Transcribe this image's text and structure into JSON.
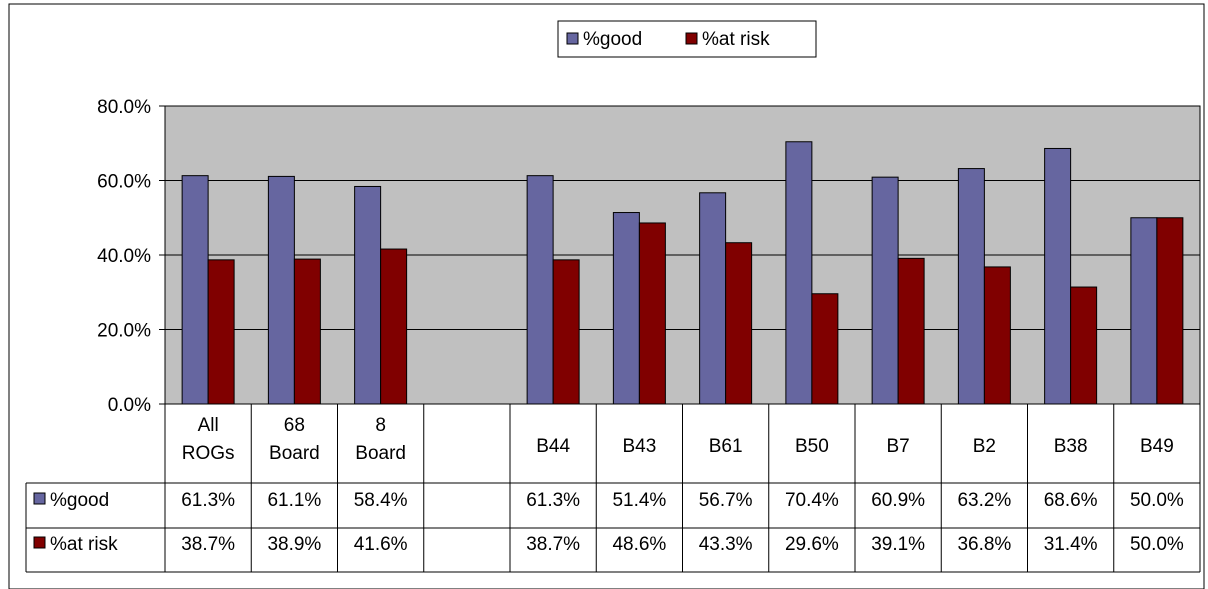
{
  "chart_data": {
    "type": "bar",
    "title": "",
    "xlabel": "",
    "ylabel": "",
    "ylim": [
      0,
      80
    ],
    "yticks": [
      "0.0%",
      "20.0%",
      "40.0%",
      "60.0%",
      "80.0%"
    ],
    "grid": true,
    "legend": "top-center",
    "categories": [
      [
        "All",
        "ROGs"
      ],
      [
        "68",
        "Board"
      ],
      [
        "8",
        "Board"
      ],
      [
        ""
      ],
      [
        "B44"
      ],
      [
        "B43"
      ],
      [
        "B61"
      ],
      [
        "B50"
      ],
      [
        "B7"
      ],
      [
        "B2"
      ],
      [
        "B38"
      ],
      [
        "B49"
      ]
    ],
    "series": [
      {
        "name": "%good",
        "color": "#6666a0",
        "values": [
          61.3,
          61.1,
          58.4,
          null,
          61.3,
          51.4,
          56.7,
          70.4,
          60.9,
          63.2,
          68.6,
          50.0
        ],
        "labels": [
          "61.3%",
          "61.1%",
          "58.4%",
          "",
          "61.3%",
          "51.4%",
          "56.7%",
          "70.4%",
          "60.9%",
          "63.2%",
          "68.6%",
          "50.0%"
        ]
      },
      {
        "name": "%at risk",
        "color": "#800000",
        "values": [
          38.7,
          38.9,
          41.6,
          null,
          38.7,
          48.6,
          43.3,
          29.6,
          39.1,
          36.8,
          31.4,
          50.0
        ],
        "labels": [
          "38.7%",
          "38.9%",
          "41.6%",
          "",
          "38.7%",
          "48.6%",
          "43.3%",
          "29.6%",
          "39.1%",
          "36.8%",
          "31.4%",
          "50.0%"
        ]
      }
    ],
    "plot_area_color": "#c0c0c0"
  }
}
